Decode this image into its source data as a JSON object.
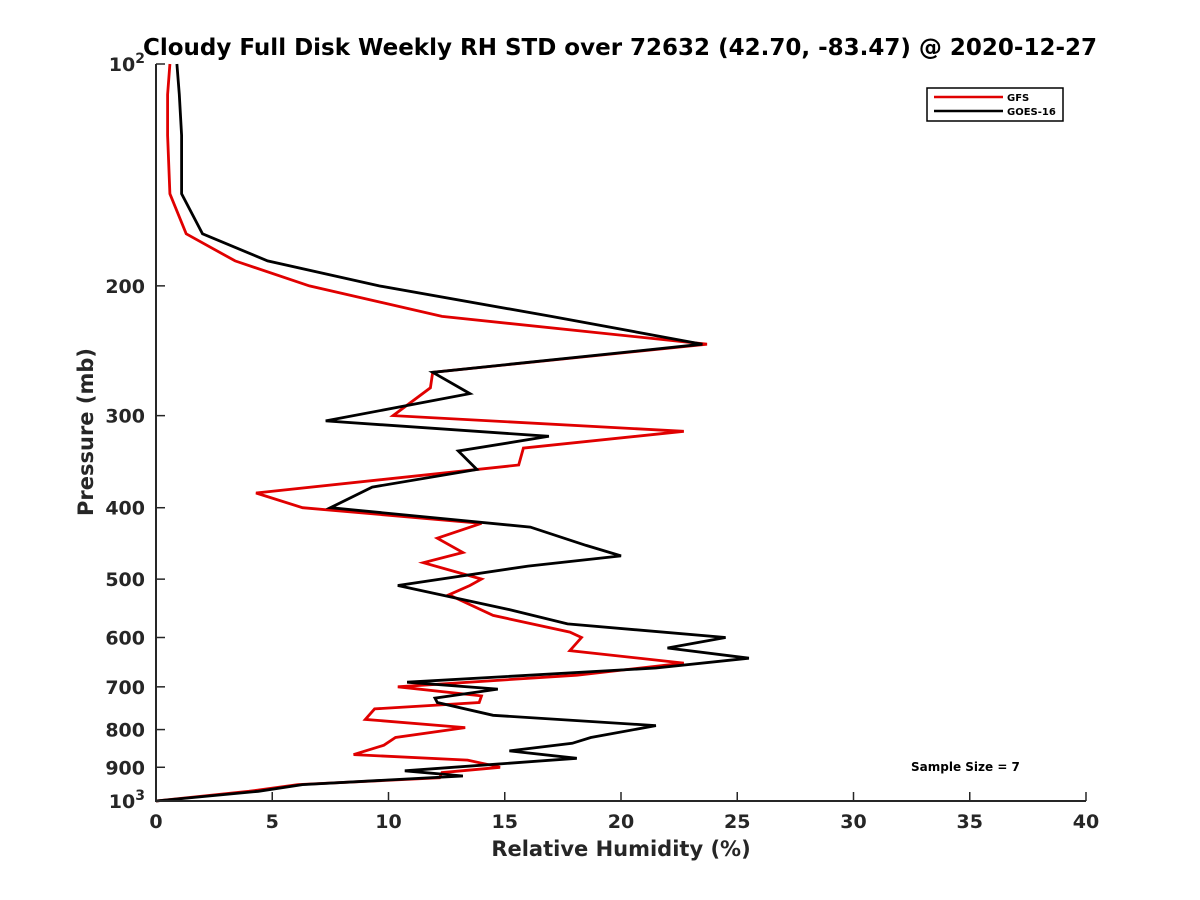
{
  "chart_data": {
    "type": "line",
    "title": "Cloudy Full Disk Weekly RH STD over 72632 (42.70, -83.47) @ 2020-12-27",
    "xlabel": "Relative Humidity (%)",
    "ylabel": "Pressure (mb)",
    "xlim": [
      0,
      40
    ],
    "ylim": [
      100,
      1000
    ],
    "y_scale": "log",
    "y_reversed": true,
    "grid": false,
    "legend_position": "top-right",
    "x_ticks": [
      "0",
      "5",
      "10",
      "15",
      "20",
      "25",
      "30",
      "35",
      "40"
    ],
    "y_ticks": [
      {
        "value": 100,
        "label": "10",
        "sup": "2"
      },
      {
        "value": 200,
        "label": "200",
        "sup": ""
      },
      {
        "value": 300,
        "label": "300",
        "sup": ""
      },
      {
        "value": 400,
        "label": "400",
        "sup": ""
      },
      {
        "value": 500,
        "label": "500",
        "sup": ""
      },
      {
        "value": 600,
        "label": "600",
        "sup": ""
      },
      {
        "value": 700,
        "label": "700",
        "sup": ""
      },
      {
        "value": 800,
        "label": "800",
        "sup": ""
      },
      {
        "value": 900,
        "label": "900",
        "sup": ""
      },
      {
        "value": 1000,
        "label": "10",
        "sup": "3"
      }
    ],
    "series": [
      {
        "name": "GFS",
        "color": "#e00000",
        "points": [
          [
            0.6,
            100
          ],
          [
            0.5,
            110
          ],
          [
            0.5,
            125
          ],
          [
            0.6,
            150
          ],
          [
            1.3,
            170
          ],
          [
            3.4,
            185
          ],
          [
            6.6,
            200
          ],
          [
            12.3,
            220
          ],
          [
            23.7,
            240
          ],
          [
            11.9,
            262
          ],
          [
            11.8,
            275
          ],
          [
            10.2,
            300
          ],
          [
            22.7,
            315
          ],
          [
            15.8,
            332
          ],
          [
            15.6,
            350
          ],
          [
            4.3,
            382
          ],
          [
            6.3,
            400
          ],
          [
            14.0,
            420
          ],
          [
            12.1,
            440
          ],
          [
            13.2,
            460
          ],
          [
            11.5,
            475
          ],
          [
            14.0,
            500
          ],
          [
            13.5,
            510
          ],
          [
            12.6,
            525
          ],
          [
            14.5,
            560
          ],
          [
            17.8,
            590
          ],
          [
            18.3,
            600
          ],
          [
            17.8,
            625
          ],
          [
            22.7,
            650
          ],
          [
            18.1,
            675
          ],
          [
            10.4,
            700
          ],
          [
            14.0,
            720
          ],
          [
            13.9,
            735
          ],
          [
            9.4,
            750
          ],
          [
            9.0,
            775
          ],
          [
            13.3,
            795
          ],
          [
            10.3,
            820
          ],
          [
            9.8,
            840
          ],
          [
            8.5,
            865
          ],
          [
            13.4,
            880
          ],
          [
            14.8,
            900
          ],
          [
            12.3,
            915
          ],
          [
            12.2,
            930
          ],
          [
            6.1,
            950
          ],
          [
            4.0,
            970
          ],
          [
            0,
            1000
          ]
        ]
      },
      {
        "name": "GOES-16",
        "color": "#000000",
        "points": [
          [
            0.9,
            100
          ],
          [
            1.0,
            110
          ],
          [
            1.1,
            125
          ],
          [
            1.1,
            150
          ],
          [
            2.0,
            170
          ],
          [
            4.8,
            185
          ],
          [
            9.6,
            200
          ],
          [
            17.0,
            220
          ],
          [
            23.5,
            240
          ],
          [
            11.9,
            262
          ],
          [
            13.5,
            280
          ],
          [
            7.3,
            305
          ],
          [
            16.9,
            320
          ],
          [
            13.0,
            335
          ],
          [
            13.8,
            355
          ],
          [
            9.3,
            375
          ],
          [
            7.5,
            400
          ],
          [
            16.1,
            425
          ],
          [
            18.5,
            450
          ],
          [
            20.0,
            465
          ],
          [
            16.0,
            480
          ],
          [
            10.4,
            510
          ],
          [
            15.2,
            550
          ],
          [
            17.7,
            575
          ],
          [
            24.5,
            600
          ],
          [
            22.0,
            620
          ],
          [
            25.5,
            640
          ],
          [
            21.5,
            660
          ],
          [
            10.8,
            690
          ],
          [
            14.7,
            705
          ],
          [
            12.0,
            725
          ],
          [
            12.1,
            735
          ],
          [
            14.5,
            765
          ],
          [
            21.5,
            790
          ],
          [
            18.7,
            820
          ],
          [
            17.9,
            835
          ],
          [
            15.2,
            855
          ],
          [
            18.1,
            875
          ],
          [
            10.7,
            910
          ],
          [
            13.2,
            925
          ],
          [
            6.3,
            950
          ],
          [
            4.4,
            970
          ],
          [
            0,
            1000
          ]
        ]
      }
    ],
    "annotation": "Sample Size = 7"
  }
}
